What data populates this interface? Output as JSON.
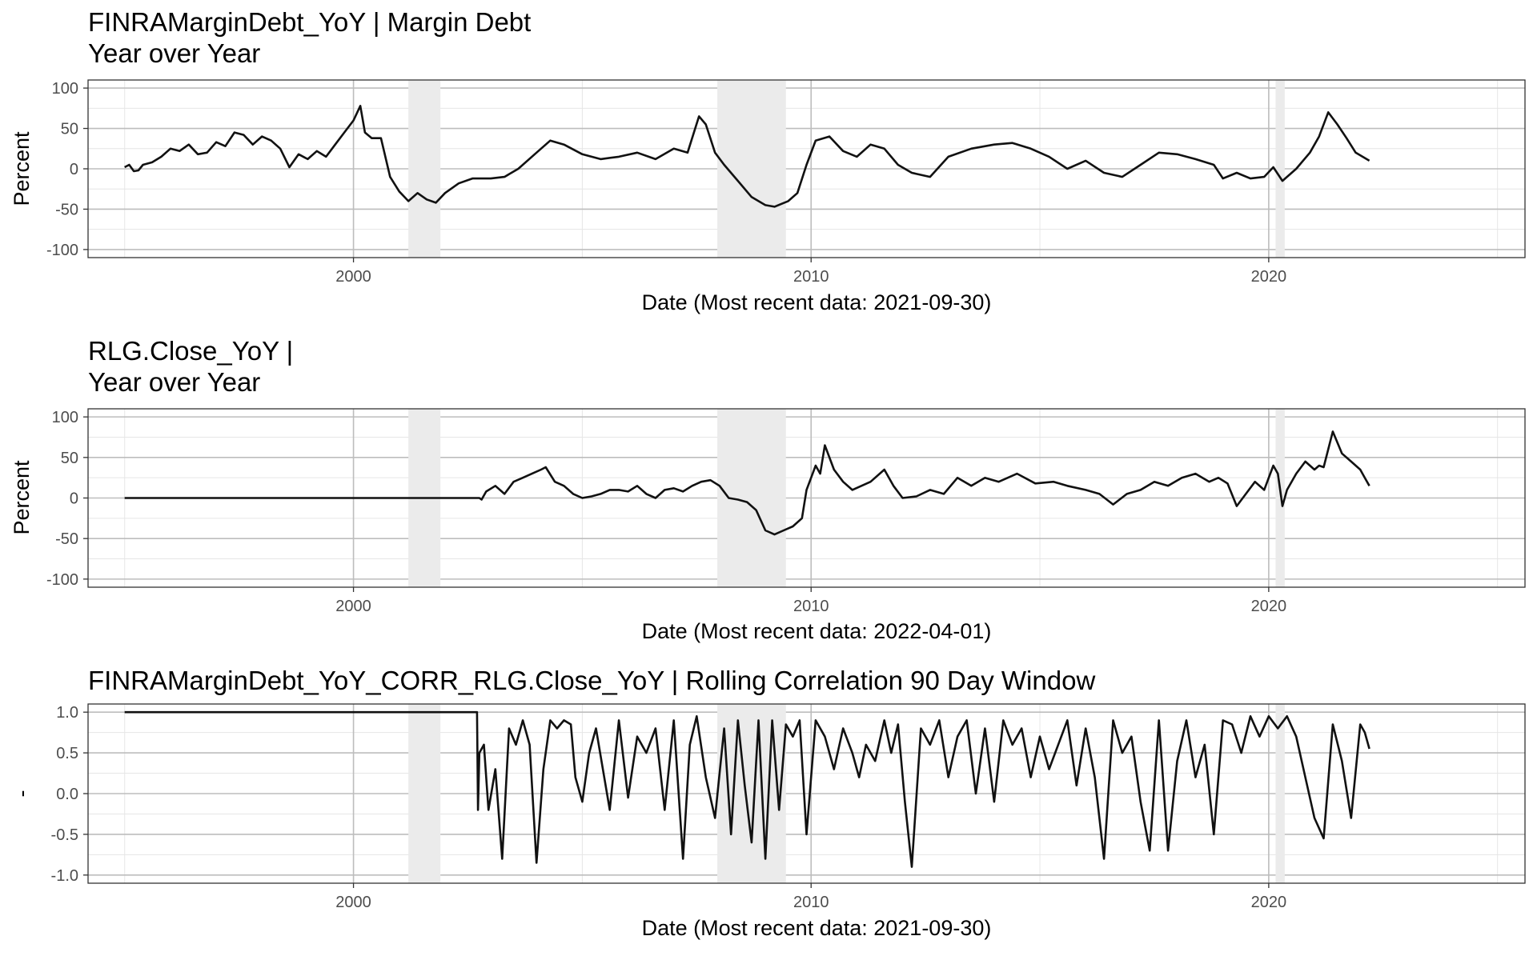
{
  "chart_data": [
    {
      "type": "line",
      "title_line1": "FINRAMarginDebt_YoY | Margin Debt",
      "title_line2": "Year over Year",
      "xlabel": "Date (Most recent data: 2021-09-30)",
      "ylabel": "Percent",
      "xlim": [
        1994.2,
        2025.6
      ],
      "ylim": [
        -110,
        110
      ],
      "yticks": [
        100,
        50,
        0,
        -50,
        -100
      ],
      "ytick_labels": [
        "100",
        "50",
        "0",
        "-50",
        "-100"
      ],
      "xticks": [
        2000,
        2010,
        2020
      ],
      "xtick_labels": [
        "2000",
        "2010",
        "2020"
      ],
      "recessions": [
        [
          2001.2,
          2001.9
        ],
        [
          2007.95,
          2009.45
        ],
        [
          2020.15,
          2020.35
        ]
      ],
      "series": [
        {
          "name": "FINRAMarginDebt_YoY",
          "x": [
            1995.0,
            1995.1,
            1995.2,
            1995.3,
            1995.4,
            1995.6,
            1995.8,
            1996.0,
            1996.2,
            1996.4,
            1996.6,
            1996.8,
            1997.0,
            1997.2,
            1997.4,
            1997.6,
            1997.8,
            1998.0,
            1998.2,
            1998.4,
            1998.6,
            1998.8,
            1999.0,
            1999.2,
            1999.4,
            1999.6,
            1999.8,
            2000.0,
            2000.15,
            2000.25,
            2000.4,
            2000.6,
            2000.8,
            2001.0,
            2001.2,
            2001.4,
            2001.6,
            2001.8,
            2002.0,
            2002.3,
            2002.6,
            2003.0,
            2003.3,
            2003.6,
            2004.0,
            2004.3,
            2004.6,
            2005.0,
            2005.4,
            2005.8,
            2006.2,
            2006.6,
            2007.0,
            2007.3,
            2007.55,
            2007.7,
            2007.9,
            2008.1,
            2008.4,
            2008.7,
            2009.0,
            2009.2,
            2009.5,
            2009.7,
            2009.9,
            2010.1,
            2010.4,
            2010.7,
            2011.0,
            2011.3,
            2011.6,
            2011.9,
            2012.2,
            2012.6,
            2013.0,
            2013.5,
            2014.0,
            2014.4,
            2014.8,
            2015.2,
            2015.6,
            2016.0,
            2016.4,
            2016.8,
            2017.2,
            2017.6,
            2018.0,
            2018.4,
            2018.8,
            2019.0,
            2019.3,
            2019.6,
            2019.9,
            2020.1,
            2020.3,
            2020.6,
            2020.9,
            2021.1,
            2021.3,
            2021.5,
            2021.7,
            2021.9,
            2022.2
          ],
          "values": [
            2,
            5,
            -3,
            -2,
            5,
            8,
            15,
            25,
            22,
            30,
            18,
            20,
            33,
            28,
            45,
            42,
            30,
            40,
            35,
            25,
            2,
            18,
            12,
            22,
            15,
            30,
            45,
            60,
            78,
            45,
            38,
            38,
            -10,
            -28,
            -40,
            -30,
            -38,
            -42,
            -30,
            -18,
            -12,
            -12,
            -10,
            0,
            20,
            35,
            30,
            18,
            12,
            15,
            20,
            12,
            25,
            20,
            65,
            55,
            20,
            5,
            -15,
            -35,
            -45,
            -47,
            -40,
            -30,
            5,
            35,
            40,
            22,
            15,
            30,
            25,
            5,
            -5,
            -10,
            15,
            25,
            30,
            32,
            25,
            15,
            0,
            10,
            -5,
            -10,
            5,
            20,
            18,
            12,
            5,
            -12,
            -5,
            -12,
            -10,
            2,
            -15,
            0,
            20,
            40,
            70,
            55,
            38,
            20,
            10
          ]
        }
      ]
    },
    {
      "type": "line",
      "title_line1": "RLG.Close_YoY |",
      "title_line2": "Year over Year",
      "xlabel": "Date (Most recent data: 2022-04-01)",
      "ylabel": "Percent",
      "xlim": [
        1994.2,
        2025.6
      ],
      "ylim": [
        -110,
        110
      ],
      "yticks": [
        100,
        50,
        0,
        -50,
        -100
      ],
      "ytick_labels": [
        "100",
        "50",
        "0",
        "-50",
        "-100"
      ],
      "xticks": [
        2000,
        2010,
        2020
      ],
      "xtick_labels": [
        "2000",
        "2010",
        "2020"
      ],
      "recessions": [
        [
          2001.2,
          2001.9
        ],
        [
          2007.95,
          2009.45
        ],
        [
          2020.15,
          2020.35
        ]
      ],
      "series": [
        {
          "name": "RLG.Close_YoY",
          "x": [
            1995.0,
            2002.75,
            2002.8,
            2002.9,
            2003.1,
            2003.3,
            2003.5,
            2003.7,
            2003.9,
            2004.1,
            2004.2,
            2004.4,
            2004.6,
            2004.8,
            2005.0,
            2005.2,
            2005.4,
            2005.6,
            2005.8,
            2006.0,
            2006.2,
            2006.4,
            2006.6,
            2006.8,
            2007.0,
            2007.2,
            2007.4,
            2007.6,
            2007.8,
            2008.0,
            2008.2,
            2008.4,
            2008.6,
            2008.8,
            2009.0,
            2009.2,
            2009.4,
            2009.6,
            2009.8,
            2009.9,
            2010.1,
            2010.2,
            2010.3,
            2010.5,
            2010.7,
            2010.9,
            2011.1,
            2011.3,
            2011.6,
            2011.8,
            2012.0,
            2012.3,
            2012.6,
            2012.9,
            2013.2,
            2013.5,
            2013.8,
            2014.1,
            2014.5,
            2014.9,
            2015.3,
            2015.6,
            2016.0,
            2016.3,
            2016.6,
            2016.9,
            2017.2,
            2017.5,
            2017.8,
            2018.1,
            2018.4,
            2018.7,
            2018.9,
            2019.1,
            2019.3,
            2019.5,
            2019.7,
            2019.9,
            2020.1,
            2020.2,
            2020.3,
            2020.4,
            2020.6,
            2020.8,
            2021.0,
            2021.1,
            2021.2,
            2021.4,
            2021.6,
            2021.8,
            2022.0,
            2022.1,
            2022.2
          ],
          "values": [
            0,
            0,
            -2,
            8,
            15,
            5,
            20,
            25,
            30,
            35,
            38,
            20,
            15,
            5,
            0,
            2,
            5,
            10,
            10,
            8,
            15,
            5,
            0,
            10,
            12,
            8,
            15,
            20,
            22,
            15,
            0,
            -2,
            -5,
            -15,
            -40,
            -45,
            -40,
            -35,
            -25,
            10,
            40,
            30,
            65,
            35,
            20,
            10,
            15,
            20,
            35,
            15,
            0,
            2,
            10,
            5,
            25,
            15,
            25,
            20,
            30,
            18,
            20,
            15,
            10,
            5,
            -8,
            5,
            10,
            20,
            15,
            25,
            30,
            20,
            25,
            18,
            -10,
            5,
            20,
            10,
            40,
            30,
            -10,
            10,
            30,
            45,
            35,
            40,
            38,
            82,
            55,
            45,
            35,
            25,
            15
          ]
        }
      ]
    },
    {
      "type": "line",
      "title_line1": "FINRAMarginDebt_YoY_CORR_RLG.Close_YoY | Rolling Correlation  90  Day Window",
      "title_line2": "",
      "xlabel": "Date (Most recent data: 2021-09-30)",
      "ylabel": "-",
      "xlim": [
        1994.2,
        2025.6
      ],
      "ylim": [
        -1.1,
        1.1
      ],
      "yticks": [
        1.0,
        0.5,
        0.0,
        -0.5,
        -1.0
      ],
      "ytick_labels": [
        "1.0",
        "0.5",
        "0.0",
        "-0.5",
        "-1.0"
      ],
      "xticks": [
        2000,
        2010,
        2020
      ],
      "xtick_labels": [
        "2000",
        "2010",
        "2020"
      ],
      "recessions": [
        [
          2001.2,
          2001.9
        ],
        [
          2007.95,
          2009.45
        ],
        [
          2020.15,
          2020.35
        ]
      ],
      "series": [
        {
          "name": "FINRAMarginDebt_YoY_CORR_RLG.Close_YoY",
          "x": [
            1995.0,
            2002.7,
            2002.72,
            2002.75,
            2002.85,
            2002.95,
            2003.1,
            2003.25,
            2003.4,
            2003.55,
            2003.7,
            2003.85,
            2004.0,
            2004.15,
            2004.3,
            2004.45,
            2004.6,
            2004.75,
            2004.85,
            2005.0,
            2005.15,
            2005.3,
            2005.45,
            2005.6,
            2005.8,
            2006.0,
            2006.2,
            2006.4,
            2006.6,
            2006.8,
            2007.0,
            2007.2,
            2007.35,
            2007.5,
            2007.7,
            2007.9,
            2008.1,
            2008.25,
            2008.4,
            2008.55,
            2008.7,
            2008.85,
            2009.0,
            2009.15,
            2009.3,
            2009.45,
            2009.6,
            2009.75,
            2009.9,
            2010.1,
            2010.3,
            2010.5,
            2010.7,
            2010.9,
            2011.05,
            2011.2,
            2011.4,
            2011.6,
            2011.75,
            2011.9,
            2012.05,
            2012.2,
            2012.4,
            2012.6,
            2012.8,
            2013.0,
            2013.2,
            2013.4,
            2013.6,
            2013.8,
            2014.0,
            2014.2,
            2014.4,
            2014.6,
            2014.8,
            2015.0,
            2015.2,
            2015.4,
            2015.6,
            2015.8,
            2016.0,
            2016.2,
            2016.4,
            2016.6,
            2016.8,
            2017.0,
            2017.2,
            2017.4,
            2017.6,
            2017.8,
            2018.0,
            2018.2,
            2018.4,
            2018.6,
            2018.8,
            2019.0,
            2019.2,
            2019.4,
            2019.6,
            2019.8,
            2020.0,
            2020.2,
            2020.4,
            2020.6,
            2020.8,
            2021.0,
            2021.2,
            2021.4,
            2021.6,
            2021.8,
            2022.0,
            2022.1,
            2022.2
          ],
          "values": [
            1.0,
            1.0,
            -0.2,
            0.5,
            0.6,
            -0.2,
            0.3,
            -0.8,
            0.8,
            0.6,
            0.9,
            0.6,
            -0.85,
            0.3,
            0.9,
            0.8,
            0.9,
            0.85,
            0.2,
            -0.1,
            0.5,
            0.8,
            0.3,
            -0.2,
            0.9,
            -0.05,
            0.7,
            0.5,
            0.8,
            -0.2,
            0.9,
            -0.8,
            0.6,
            0.95,
            0.2,
            -0.3,
            0.8,
            -0.5,
            0.9,
            0.1,
            -0.6,
            0.9,
            -0.8,
            0.9,
            -0.2,
            0.85,
            0.7,
            0.9,
            -0.5,
            0.9,
            0.7,
            0.3,
            0.8,
            0.5,
            0.2,
            0.6,
            0.4,
            0.9,
            0.5,
            0.85,
            -0.1,
            -0.9,
            0.8,
            0.6,
            0.9,
            0.2,
            0.7,
            0.9,
            0.0,
            0.8,
            -0.1,
            0.9,
            0.6,
            0.8,
            0.2,
            0.7,
            0.3,
            0.6,
            0.9,
            0.1,
            0.8,
            0.2,
            -0.8,
            0.9,
            0.5,
            0.7,
            -0.1,
            -0.7,
            0.9,
            -0.7,
            0.4,
            0.9,
            0.2,
            0.6,
            -0.5,
            0.9,
            0.85,
            0.5,
            0.95,
            0.7,
            0.95,
            0.8,
            0.95,
            0.7,
            0.2,
            -0.3,
            -0.55,
            0.85,
            0.4,
            -0.3,
            0.85,
            0.75,
            0.55
          ]
        }
      ]
    }
  ]
}
